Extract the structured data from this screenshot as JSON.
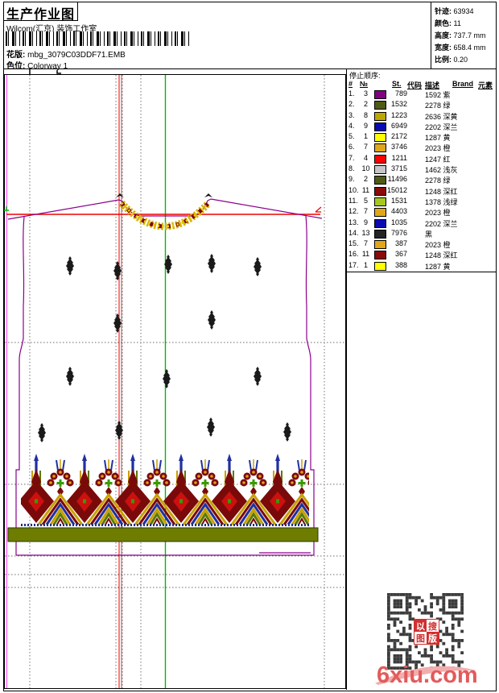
{
  "header": {
    "title": "生产作业图",
    "studio": "Wilcom(汇京) 装饰工作室",
    "pattern_label": "花版:",
    "pattern_value": "mbg_3079C03DDF71.EMB",
    "colorway_label": "色位:",
    "colorway_value": "Colorway 1"
  },
  "info": {
    "stitches_label": "针迹:",
    "stitches": "63934",
    "colors_label": "颜色:",
    "colors": "11",
    "height_label": "高度:",
    "height": "737.7 mm",
    "width_label": "宽度:",
    "width": "658.4 mm",
    "scale_label": "比例:",
    "scale": "0.20"
  },
  "stop_sequence": {
    "title": "停止顺序:",
    "columns": {
      "idx": "#",
      "no": "№",
      "st": "St.",
      "code": "代码",
      "desc": "描述",
      "brand": "Brand",
      "elem": "元素"
    },
    "rows": [
      {
        "idx": "1.",
        "no": "3",
        "color": "#800080",
        "st": "789",
        "desc": "1592 紫"
      },
      {
        "idx": "2.",
        "no": "2",
        "color": "#4F5A14",
        "st": "1532",
        "desc": "2278 绿"
      },
      {
        "idx": "3.",
        "no": "8",
        "color": "#BCA800",
        "st": "1223",
        "desc": "2636 深黄"
      },
      {
        "idx": "4.",
        "no": "9",
        "color": "#0A0AB4",
        "st": "6949",
        "desc": "2202 深兰"
      },
      {
        "idx": "5.",
        "no": "1",
        "color": "#FFFF00",
        "st": "2172",
        "desc": "1287 黄"
      },
      {
        "idx": "6.",
        "no": "7",
        "color": "#E0A818",
        "st": "3746",
        "desc": "2023 橙"
      },
      {
        "idx": "7.",
        "no": "4",
        "color": "#FF0000",
        "st": "1211",
        "desc": "1247 红"
      },
      {
        "idx": "8.",
        "no": "10",
        "color": "#C6C6C6",
        "st": "3715",
        "desc": "1462 浅灰"
      },
      {
        "idx": "9.",
        "no": "2",
        "color": "#4F5A14",
        "st": "11496",
        "desc": "2278 绿"
      },
      {
        "idx": "10.",
        "no": "11",
        "color": "#8A0A0A",
        "st": "15012",
        "desc": "1248 深红"
      },
      {
        "idx": "11.",
        "no": "5",
        "color": "#A6C81E",
        "st": "1531",
        "desc": "1378 浅绿"
      },
      {
        "idx": "12.",
        "no": "7",
        "color": "#E0A818",
        "st": "4403",
        "desc": "2023 橙"
      },
      {
        "idx": "13.",
        "no": "9",
        "color": "#0A0AB4",
        "st": "1035",
        "desc": "2202 深兰"
      },
      {
        "idx": "14.",
        "no": "13",
        "color": "#242424",
        "st": "7976",
        "desc": "黑"
      },
      {
        "idx": "15.",
        "no": "7",
        "color": "#E0A818",
        "st": "387",
        "desc": "2023 橙"
      },
      {
        "idx": "16.",
        "no": "11",
        "color": "#8A0A0A",
        "st": "367",
        "desc": "1248 深红"
      },
      {
        "idx": "17.",
        "no": "1",
        "color": "#FFFF00",
        "st": "388",
        "desc": "1287 黄"
      }
    ]
  },
  "watermark": {
    "badge_chars": [
      "以",
      "搜",
      "图",
      "版"
    ],
    "site": "6xiu.com",
    "accent_color": "#E25B5B"
  },
  "guides": {
    "outline_color": "#8B008B",
    "center_line_color": "#00BB00",
    "marker_line_color": "#EE0000"
  }
}
